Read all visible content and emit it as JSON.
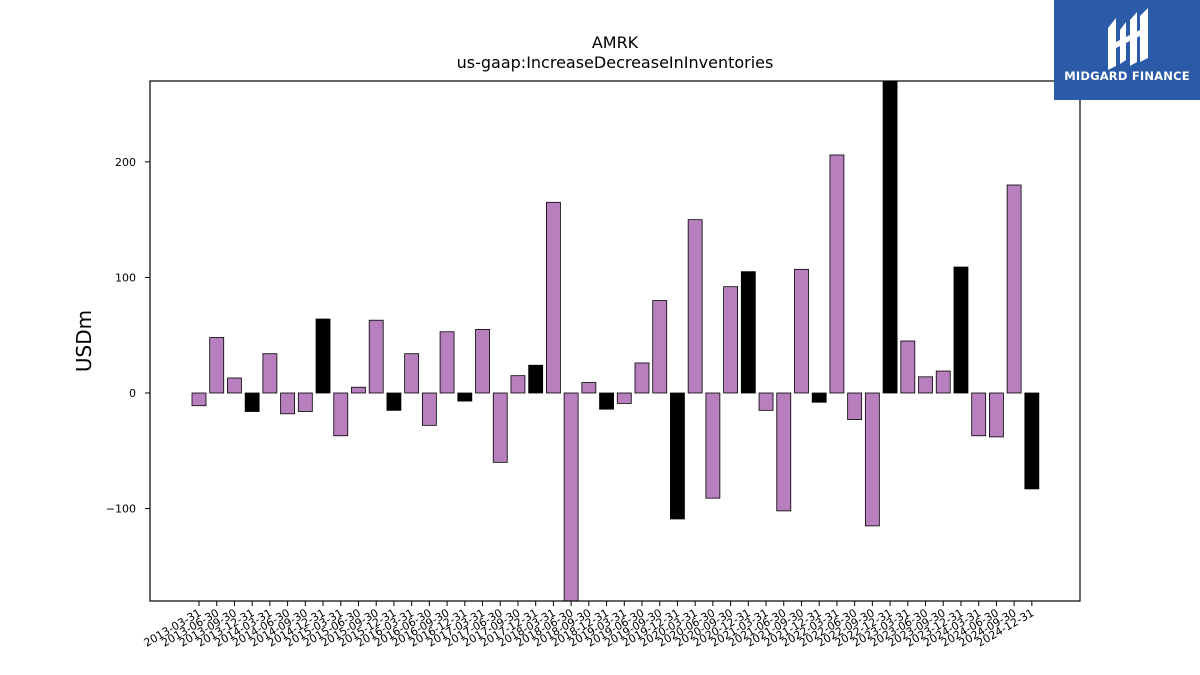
{
  "brand": {
    "name": "MIDGARD FINANCE",
    "color": "#2a5aa8"
  },
  "chart_data": {
    "type": "bar",
    "title": "AMRK",
    "subtitle": "us-gaap:IncreaseDecreaseInInventories",
    "ylabel": "USDm",
    "xlabel": "",
    "ylim": [
      -180,
      270
    ],
    "yticks": [
      -100,
      0,
      100,
      200
    ],
    "colors": {
      "default": "#b77fbd",
      "highlight": "#000000"
    },
    "categories": [
      "2013-03-31",
      "2013-06-30",
      "2013-09-30",
      "2013-12-31",
      "2014-03-31",
      "2014-06-30",
      "2014-09-30",
      "2014-12-31",
      "2015-03-31",
      "2015-06-30",
      "2015-09-30",
      "2015-12-31",
      "2016-03-31",
      "2016-06-30",
      "2016-09-30",
      "2016-12-31",
      "2017-03-31",
      "2017-06-30",
      "2017-09-30",
      "2017-12-31",
      "2018-03-31",
      "2018-06-30",
      "2018-09-30",
      "2018-12-31",
      "2019-03-31",
      "2019-06-30",
      "2019-09-30",
      "2019-12-31",
      "2020-03-31",
      "2020-06-30",
      "2020-09-30",
      "2020-12-31",
      "2021-03-31",
      "2021-06-30",
      "2021-09-30",
      "2021-12-31",
      "2022-03-31",
      "2022-06-30",
      "2022-09-30",
      "2022-12-31",
      "2023-03-31",
      "2023-06-30",
      "2023-09-30",
      "2023-12-31",
      "2024-03-31",
      "2024-06-30",
      "2024-09-30",
      "2024-12-31"
    ],
    "values": [
      -11,
      48,
      13,
      -16,
      34,
      -18,
      -16,
      64,
      -37,
      5,
      63,
      -15,
      34,
      -28,
      53,
      -7,
      55,
      -60,
      15,
      24,
      165,
      -180,
      9,
      -14,
      -9,
      26,
      80,
      -109,
      150,
      -91,
      92,
      105,
      -15,
      -102,
      107,
      -8,
      206,
      -23,
      -115,
      270,
      45,
      14,
      19,
      109,
      -37,
      -38,
      180,
      -83
    ],
    "highlight": [
      false,
      false,
      false,
      true,
      false,
      false,
      false,
      true,
      false,
      false,
      false,
      true,
      false,
      false,
      false,
      true,
      false,
      false,
      false,
      true,
      false,
      false,
      false,
      true,
      false,
      false,
      false,
      true,
      false,
      false,
      false,
      true,
      false,
      false,
      false,
      true,
      false,
      false,
      false,
      true,
      false,
      false,
      false,
      true,
      false,
      false,
      false,
      true
    ]
  }
}
